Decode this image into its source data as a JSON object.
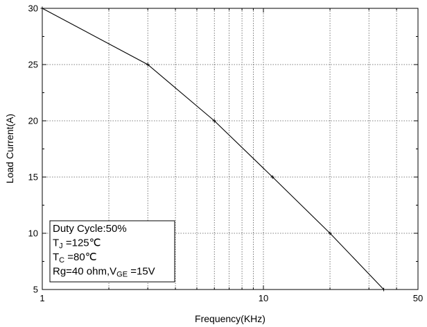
{
  "chart_data": {
    "type": "line",
    "xscale": "log",
    "xlim": [
      1,
      50
    ],
    "ylim": [
      5,
      30
    ],
    "xlabel": "Frequency(KHz)",
    "ylabel": "Load Current(A)",
    "x_tick_labels": [
      "1",
      "10",
      "50"
    ],
    "y_tick_labels": [
      "5",
      "10",
      "15",
      "20",
      "25",
      "30"
    ],
    "y_ticks": [
      5,
      10,
      15,
      20,
      25,
      30
    ],
    "grid": true,
    "series": [
      {
        "x": [
          1,
          3,
          6,
          11,
          20,
          35
        ],
        "y": [
          30,
          25,
          20,
          15,
          10,
          5
        ],
        "color": "#000000"
      }
    ],
    "annotation": {
      "lines": [
        {
          "main": "Duty Cycle:50%",
          "parts": []
        },
        {
          "parts": [
            {
              "t": "T",
              "sub": false
            },
            {
              "t": "J",
              "sub": true
            },
            {
              "t": " =125℃",
              "sub": false
            }
          ]
        },
        {
          "parts": [
            {
              "t": "T",
              "sub": false
            },
            {
              "t": "C",
              "sub": true
            },
            {
              "t": " =80℃",
              "sub": false
            }
          ]
        },
        {
          "parts": [
            {
              "t": "Rg=40 ohm,V",
              "sub": false
            },
            {
              "t": "GE",
              "sub": true
            },
            {
              "t": " =15V",
              "sub": false
            }
          ]
        }
      ],
      "position": "bottom-left"
    }
  }
}
